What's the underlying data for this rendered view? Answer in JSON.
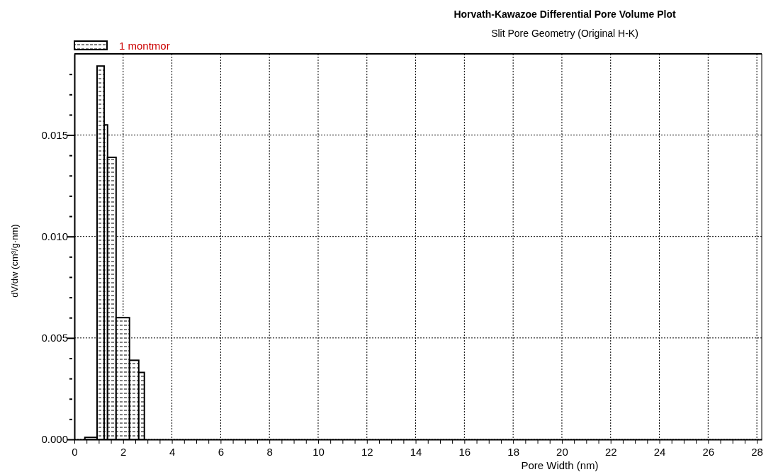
{
  "chart_data": {
    "type": "histogram",
    "title": "Horvath-Kawazoe Differential Pore Volume Plot",
    "subtitle": "Slit Pore Geometry (Original H-K)",
    "xlabel": "Pore Width (nm)",
    "ylabel": "dV/dw (cm³/g·nm)",
    "bins": [
      0.43,
      0.93,
      1.22,
      1.36,
      1.71,
      2.26,
      2.64,
      2.87
    ],
    "series": [
      {
        "name": "1 montmor",
        "color": "#000000",
        "values": [
          0.0001,
          0.0184,
          0.0155,
          0.0139,
          0.006,
          0.0039,
          0.0033
        ]
      }
    ],
    "xlim": [
      0,
      28.2
    ],
    "ylim": [
      0,
      0.019
    ],
    "xticks": [
      0,
      {
        "value": 0.5,
        "label": null
      },
      {
        "value": 1,
        "label": null
      },
      {
        "value": 1.5,
        "label": null
      },
      2,
      {
        "value": 2.5,
        "label": null
      },
      {
        "value": 3,
        "label": null
      },
      {
        "value": 3.5,
        "label": null
      },
      4,
      {
        "value": 4.5,
        "label": null
      },
      {
        "value": 5,
        "label": null
      },
      {
        "value": 5.5,
        "label": null
      },
      6,
      {
        "value": 6.5,
        "label": null
      },
      {
        "value": 7,
        "label": null
      },
      {
        "value": 7.5,
        "label": null
      },
      8,
      {
        "value": 8.5,
        "label": null
      },
      {
        "value": 9,
        "label": null
      },
      {
        "value": 9.5,
        "label": null
      },
      10,
      {
        "value": 10.5,
        "label": null
      },
      {
        "value": 11,
        "label": null
      },
      {
        "value": 11.5,
        "label": null
      },
      12,
      {
        "value": 12.5,
        "label": null
      },
      {
        "value": 13,
        "label": null
      },
      {
        "value": 13.5,
        "label": null
      },
      14,
      {
        "value": 14.5,
        "label": null
      },
      {
        "value": 15,
        "label": null
      },
      {
        "value": 15.5,
        "label": null
      },
      16,
      {
        "value": 16.5,
        "label": null
      },
      {
        "value": 17,
        "label": null
      },
      {
        "value": 17.5,
        "label": null
      },
      18,
      {
        "value": 18.5,
        "label": null
      },
      {
        "value": 19,
        "label": null
      },
      {
        "value": 19.5,
        "label": null
      },
      20,
      {
        "value": 20.5,
        "label": null
      },
      {
        "value": 21,
        "label": null
      },
      {
        "value": 21.5,
        "label": null
      },
      22,
      {
        "value": 22.5,
        "label": null
      },
      {
        "value": 23,
        "label": null
      },
      {
        "value": 23.5,
        "label": null
      },
      24,
      {
        "value": 24.5,
        "label": null
      },
      {
        "value": 25,
        "label": null
      },
      {
        "value": 25.5,
        "label": null
      },
      26,
      {
        "value": 26.5,
        "label": null
      },
      {
        "value": 27,
        "label": null
      },
      {
        "value": 27.5,
        "label": null
      },
      28
    ],
    "yticks": [
      {
        "value": 0,
        "label": "0.000"
      },
      {
        "value": 0.001,
        "label": null
      },
      {
        "value": 0.002,
        "label": null
      },
      {
        "value": 0.003,
        "label": null
      },
      {
        "value": 0.004,
        "label": null
      },
      {
        "value": 0.005,
        "label": "0.005"
      },
      {
        "value": 0.006,
        "label": null
      },
      {
        "value": 0.007,
        "label": null
      },
      {
        "value": 0.008,
        "label": null
      },
      {
        "value": 0.009,
        "label": null
      },
      {
        "value": 0.01,
        "label": "0.010"
      },
      {
        "value": 0.011,
        "label": null
      },
      {
        "value": 0.012,
        "label": null
      },
      {
        "value": 0.013,
        "label": null
      },
      {
        "value": 0.014,
        "label": null
      },
      {
        "value": 0.015,
        "label": "0.015"
      },
      {
        "value": 0.016,
        "label": null
      },
      {
        "value": 0.017,
        "label": null
      },
      {
        "value": 0.018,
        "label": null
      }
    ],
    "grid": true,
    "legend": "top left"
  }
}
